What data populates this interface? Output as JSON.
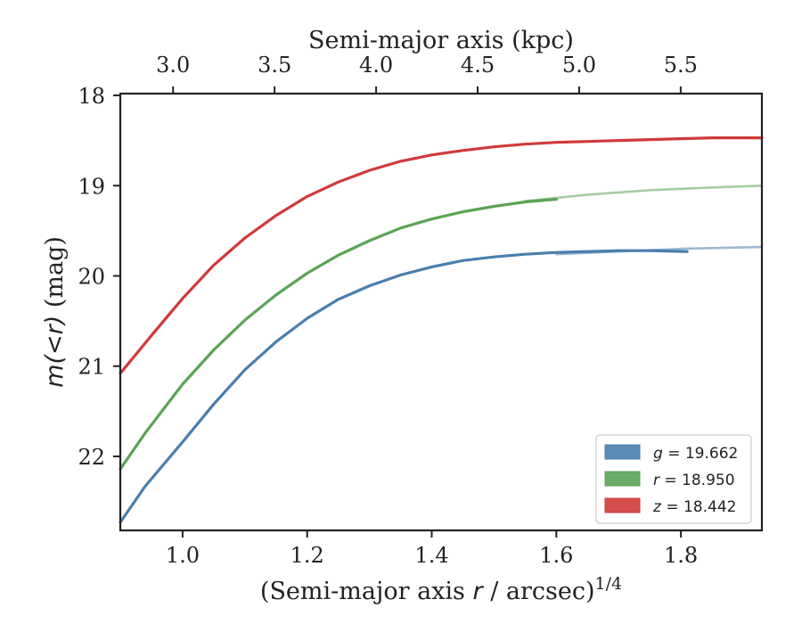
{
  "chart_data": {
    "type": "line",
    "xlabel": "(Semi-major axis r / arcsec)^{1/4}",
    "xlabel_parts": {
      "pre": "(Semi-major axis ",
      "var": "r",
      "post": " / arcsec)",
      "sup": "1/4"
    },
    "ylabel": "m(<r) (mag)",
    "ylabel_parts": {
      "math": "m(<r)",
      "unit": " (mag)"
    },
    "top_xlabel": "Semi-major axis (kpc)",
    "xlim": [
      0.9,
      1.93
    ],
    "ylim": [
      22.82,
      17.98
    ],
    "y_inverted": true,
    "x_ticks": [
      {
        "value": 1.0,
        "label": "1.0"
      },
      {
        "value": 1.2,
        "label": "1.2"
      },
      {
        "value": 1.4,
        "label": "1.4"
      },
      {
        "value": 1.6,
        "label": "1.6"
      },
      {
        "value": 1.8,
        "label": "1.8"
      }
    ],
    "y_ticks": [
      {
        "value": 18,
        "label": "18"
      },
      {
        "value": 19,
        "label": "19"
      },
      {
        "value": 20,
        "label": "20"
      },
      {
        "value": 21,
        "label": "21"
      },
      {
        "value": 22,
        "label": "22"
      }
    ],
    "top_x_ticks": [
      {
        "value": 3.0,
        "label": "3.0"
      },
      {
        "value": 3.5,
        "label": "3.5"
      },
      {
        "value": 4.0,
        "label": "4.0"
      },
      {
        "value": 4.5,
        "label": "4.5"
      },
      {
        "value": 5.0,
        "label": "5.0"
      },
      {
        "value": 5.5,
        "label": "5.5"
      }
    ],
    "grid": false,
    "legend_position": "lower-right",
    "series": [
      {
        "name": "g = 19.662",
        "legend_var": "g",
        "legend_value": "= 19.662",
        "color": "#4a7ead",
        "x": [
          0.9,
          0.94,
          1.0,
          1.05,
          1.1,
          1.15,
          1.2,
          1.25,
          1.3,
          1.35,
          1.4,
          1.45,
          1.5,
          1.55,
          1.6,
          1.65,
          1.7,
          1.75,
          1.81
        ],
        "values": [
          22.73,
          22.33,
          21.84,
          21.42,
          21.04,
          20.73,
          20.47,
          20.26,
          20.11,
          19.99,
          19.9,
          19.83,
          19.79,
          19.76,
          19.74,
          19.73,
          19.72,
          19.72,
          19.73
        ],
        "model_x": [
          1.6,
          1.7,
          1.8,
          1.93
        ],
        "model_values": [
          19.76,
          19.73,
          19.7,
          19.68
        ]
      },
      {
        "name": "r = 18.950",
        "legend_var": "r",
        "legend_value": "= 18.950",
        "color": "#5aa455",
        "x": [
          0.9,
          0.94,
          1.0,
          1.05,
          1.1,
          1.15,
          1.2,
          1.25,
          1.3,
          1.35,
          1.4,
          1.45,
          1.5,
          1.55,
          1.6
        ],
        "values": [
          22.14,
          21.74,
          21.2,
          20.82,
          20.49,
          20.21,
          19.97,
          19.77,
          19.61,
          19.47,
          19.37,
          19.29,
          19.23,
          19.18,
          19.15
        ],
        "model_x": [
          1.55,
          1.65,
          1.75,
          1.85,
          1.93
        ],
        "model_values": [
          19.17,
          19.1,
          19.05,
          19.02,
          19.0
        ]
      },
      {
        "name": "z = 18.442",
        "legend_var": "z",
        "legend_value": "= 18.442",
        "color": "#d13a3a",
        "x": [
          0.9,
          0.95,
          1.0,
          1.05,
          1.1,
          1.15,
          1.2,
          1.25,
          1.3,
          1.35,
          1.4,
          1.45,
          1.5,
          1.55,
          1.6,
          1.65,
          1.7,
          1.75,
          1.8,
          1.85,
          1.93
        ],
        "values": [
          21.08,
          20.66,
          20.25,
          19.88,
          19.58,
          19.33,
          19.12,
          18.96,
          18.83,
          18.73,
          18.66,
          18.61,
          18.57,
          18.54,
          18.52,
          18.51,
          18.5,
          18.49,
          18.48,
          18.47,
          18.47
        ],
        "model_x": [],
        "model_values": []
      }
    ]
  }
}
